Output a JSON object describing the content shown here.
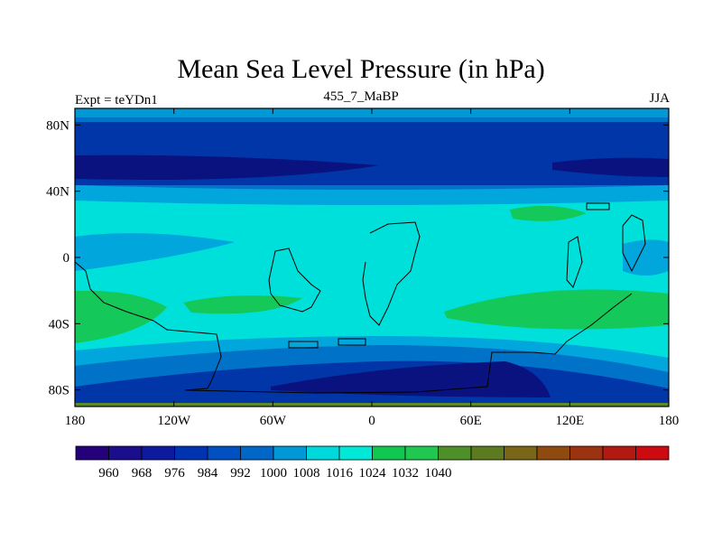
{
  "title": "Mean Sea Level Pressure (in hPa)",
  "subtitle_left": "Expt = teYDn1",
  "subtitle_center": "455_7_MaBP",
  "subtitle_right": "JJA",
  "lat_ticks": [
    {
      "label": "80N",
      "lat": 80
    },
    {
      "label": "40N",
      "lat": 40
    },
    {
      "label": "0",
      "lat": 0
    },
    {
      "label": "40S",
      "lat": -40
    },
    {
      "label": "80S",
      "lat": -80
    }
  ],
  "lon_ticks": [
    {
      "label": "180",
      "lon": -180
    },
    {
      "label": "120W",
      "lon": -120
    },
    {
      "label": "60W",
      "lon": -60
    },
    {
      "label": "0",
      "lon": 0
    },
    {
      "label": "60E",
      "lon": 60
    },
    {
      "label": "120E",
      "lon": 120
    },
    {
      "label": "180",
      "lon": 180
    }
  ],
  "colorbar": {
    "colors": [
      "#24007a",
      "#1a0e8c",
      "#0d1a9e",
      "#0033b0",
      "#0050c2",
      "#0066c8",
      "#0099d6",
      "#00d9dc",
      "#00e8d8",
      "#10c850",
      "#20c850",
      "#4f8f2a",
      "#5c7a20",
      "#7a6618",
      "#8f4a10",
      "#9c3310",
      "#b01a10",
      "#cc0a10"
    ],
    "labels": [
      {
        "text": "960",
        "index": 2
      },
      {
        "text": "968",
        "index": 4
      },
      {
        "text": "976",
        "index": 6
      },
      {
        "text": "984",
        "index": 8
      },
      {
        "text": "992",
        "index": 10
      },
      {
        "text": "1000",
        "index": 12
      },
      {
        "text": "1008",
        "index": 14
      },
      {
        "text": "1016",
        "index": 16
      },
      {
        "text": "1024",
        "index": 18
      },
      {
        "text": "1032",
        "index": 20
      },
      {
        "text": "1040",
        "index": 22
      }
    ]
  },
  "fill_colors": {
    "c960": "#0a1280",
    "c970": "#0036a8",
    "c984": "#0072c8",
    "c992": "#00a6dc",
    "c1000": "#00e0da",
    "c1008": "#14c85a",
    "c1016": "#5c8a2a"
  }
}
